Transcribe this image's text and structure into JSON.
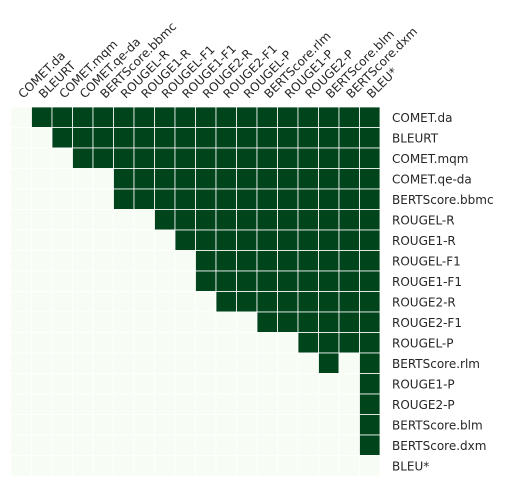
{
  "chart_data": {
    "type": "heatmap",
    "title": "",
    "xlabel": "",
    "ylabel": "",
    "grid": true,
    "legend": "none",
    "colors": {
      "low": "#f7fcf5",
      "high": "#00441b",
      "cell_border": "#ffffff"
    },
    "x_categories": [
      "COMET.da",
      "BLEURT",
      "COMET.mqm",
      "COMET.qe-da",
      "BERTScore.bbmc",
      "ROUGEL-R",
      "ROUGE1-R",
      "ROUGEL-F1",
      "ROUGE1-F1",
      "ROUGE2-R",
      "ROUGE2-F1",
      "ROUGEL-P",
      "BERTScore.rlm",
      "ROUGE1-P",
      "ROUGE2-P",
      "BERTScore.blm",
      "BERTScore.dxm",
      "BLEU*"
    ],
    "y_categories": [
      "COMET.da",
      "BLEURT",
      "COMET.mqm",
      "COMET.qe-da",
      "BERTScore.bbmc",
      "ROUGEL-R",
      "ROUGE1-R",
      "ROUGEL-F1",
      "ROUGE1-F1",
      "ROUGE2-R",
      "ROUGE2-F1",
      "ROUGEL-P",
      "BERTScore.rlm",
      "ROUGE1-P",
      "ROUGE2-P",
      "BERTScore.blm",
      "BERTScore.dxm",
      "BLEU*"
    ],
    "values": [
      [
        0,
        1,
        1,
        1,
        1,
        1,
        1,
        1,
        1,
        1,
        1,
        1,
        1,
        1,
        1,
        1,
        1,
        1
      ],
      [
        0,
        0,
        1,
        1,
        1,
        1,
        1,
        1,
        1,
        1,
        1,
        1,
        1,
        1,
        1,
        1,
        1,
        1
      ],
      [
        0,
        0,
        0,
        1,
        1,
        1,
        1,
        1,
        1,
        1,
        1,
        1,
        1,
        1,
        1,
        1,
        1,
        1
      ],
      [
        0,
        0,
        0,
        0,
        0,
        1,
        1,
        1,
        1,
        1,
        1,
        1,
        1,
        1,
        1,
        1,
        1,
        1
      ],
      [
        0,
        0,
        0,
        0,
        0,
        1,
        1,
        1,
        1,
        1,
        1,
        1,
        1,
        1,
        1,
        1,
        1,
        1
      ],
      [
        0,
        0,
        0,
        0,
        0,
        0,
        0,
        1,
        1,
        1,
        1,
        1,
        1,
        1,
        1,
        1,
        1,
        1
      ],
      [
        0,
        0,
        0,
        0,
        0,
        0,
        0,
        0,
        1,
        1,
        1,
        1,
        1,
        1,
        1,
        1,
        1,
        1
      ],
      [
        0,
        0,
        0,
        0,
        0,
        0,
        0,
        0,
        0,
        1,
        1,
        1,
        1,
        1,
        1,
        1,
        1,
        1
      ],
      [
        0,
        0,
        0,
        0,
        0,
        0,
        0,
        0,
        0,
        1,
        1,
        1,
        1,
        1,
        1,
        1,
        1,
        1
      ],
      [
        0,
        0,
        0,
        0,
        0,
        0,
        0,
        0,
        0,
        0,
        1,
        1,
        1,
        1,
        1,
        1,
        1,
        1
      ],
      [
        0,
        0,
        0,
        0,
        0,
        0,
        0,
        0,
        0,
        0,
        0,
        0,
        1,
        1,
        1,
        1,
        1,
        1
      ],
      [
        0,
        0,
        0,
        0,
        0,
        0,
        0,
        0,
        0,
        0,
        0,
        0,
        0,
        0,
        1,
        1,
        1,
        1
      ],
      [
        0,
        0,
        0,
        0,
        0,
        0,
        0,
        0,
        0,
        0,
        0,
        0,
        0,
        0,
        0,
        1,
        0,
        1
      ],
      [
        0,
        0,
        0,
        0,
        0,
        0,
        0,
        0,
        0,
        0,
        0,
        0,
        0,
        0,
        0,
        0,
        0,
        1
      ],
      [
        0,
        0,
        0,
        0,
        0,
        0,
        0,
        0,
        0,
        0,
        0,
        0,
        0,
        0,
        0,
        0,
        0,
        1
      ],
      [
        0,
        0,
        0,
        0,
        0,
        0,
        0,
        0,
        0,
        0,
        0,
        0,
        0,
        0,
        0,
        0,
        0,
        1
      ],
      [
        0,
        0,
        0,
        0,
        0,
        0,
        0,
        0,
        0,
        0,
        0,
        0,
        0,
        0,
        0,
        0,
        0,
        1
      ],
      [
        0,
        0,
        0,
        0,
        0,
        0,
        0,
        0,
        0,
        0,
        0,
        0,
        0,
        0,
        0,
        0,
        0,
        0
      ]
    ]
  }
}
